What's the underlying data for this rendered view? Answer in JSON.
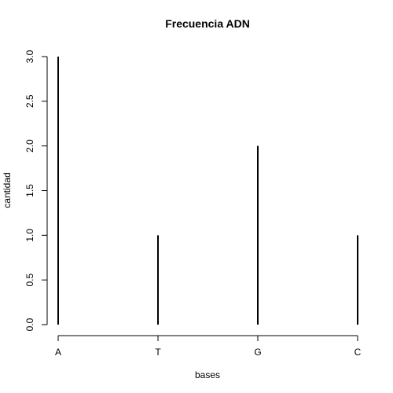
{
  "chart_data": {
    "type": "bar",
    "title": "Frecuencia ADN",
    "xlabel": "bases",
    "ylabel": "cantidad",
    "categories": [
      "A",
      "T",
      "G",
      "C"
    ],
    "values": [
      3,
      1,
      2,
      1
    ],
    "ylim": [
      0,
      3
    ],
    "yticks": [
      0.0,
      0.5,
      1.0,
      1.5,
      2.0,
      2.5,
      3.0
    ],
    "ytick_labels": [
      "0.0",
      "0.5",
      "1.0",
      "1.5",
      "2.0",
      "2.5",
      "3.0"
    ],
    "grid": false,
    "legend": "none",
    "bar_color": "#000000"
  }
}
